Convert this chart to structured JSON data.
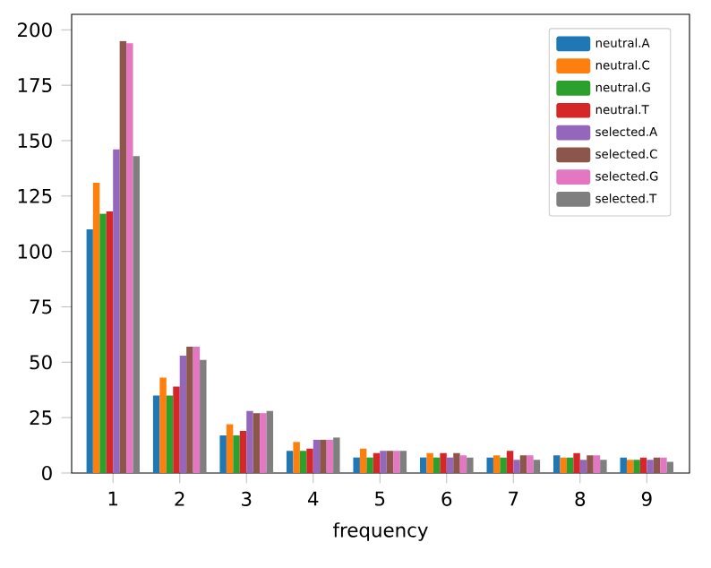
{
  "chart_data": {
    "type": "bar",
    "xlabel": "frequency",
    "categories": [
      "1",
      "2",
      "3",
      "4",
      "5",
      "6",
      "7",
      "8",
      "9"
    ],
    "series": [
      {
        "name": "neutral.A",
        "color": "#1f77b4",
        "values": [
          110,
          35,
          17,
          10,
          7,
          7,
          7,
          8,
          7
        ]
      },
      {
        "name": "neutral.C",
        "color": "#ff7f0e",
        "values": [
          131,
          43,
          22,
          14,
          11,
          9,
          8,
          7,
          6
        ]
      },
      {
        "name": "neutral.G",
        "color": "#2ca02c",
        "values": [
          117,
          35,
          17,
          10,
          7,
          7,
          7,
          7,
          6
        ]
      },
      {
        "name": "neutral.T",
        "color": "#d62728",
        "values": [
          118,
          39,
          19,
          11,
          9,
          9,
          10,
          9,
          7
        ]
      },
      {
        "name": "selected.A",
        "color": "#9467bd",
        "values": [
          146,
          53,
          28,
          15,
          10,
          7,
          6,
          6,
          6
        ]
      },
      {
        "name": "selected.C",
        "color": "#8c564b",
        "values": [
          195,
          57,
          27,
          15,
          10,
          9,
          8,
          8,
          7
        ]
      },
      {
        "name": "selected.G",
        "color": "#e377c2",
        "values": [
          194,
          57,
          27,
          15,
          10,
          8,
          8,
          8,
          7
        ]
      },
      {
        "name": "selected.T",
        "color": "#7f7f7f",
        "values": [
          143,
          51,
          28,
          16,
          10,
          7,
          6,
          6,
          5
        ]
      }
    ],
    "ylim": [
      0,
      207
    ],
    "yticks": [
      0,
      25,
      50,
      75,
      100,
      125,
      150,
      175,
      200
    ],
    "legend": "top right"
  }
}
